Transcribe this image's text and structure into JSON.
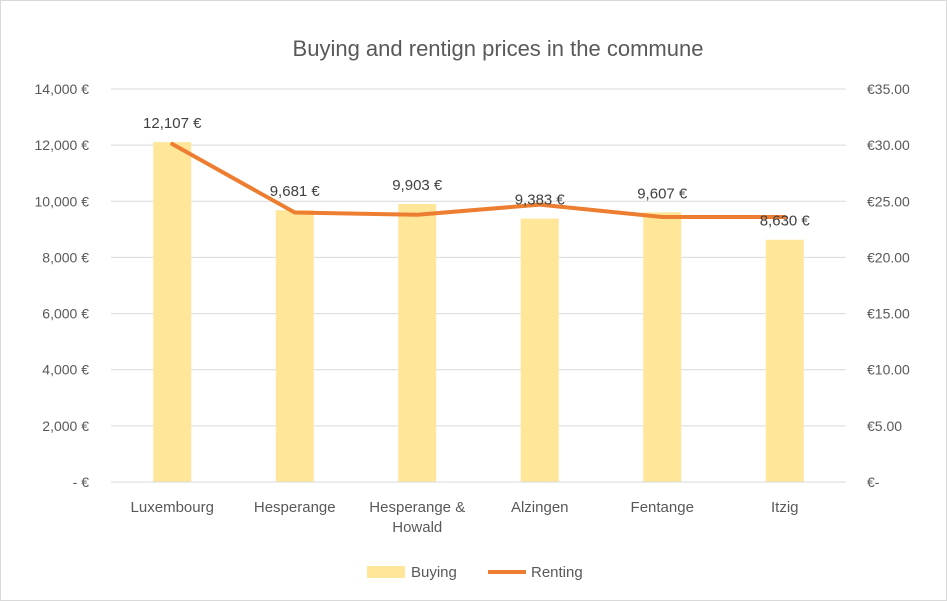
{
  "chart_data": {
    "type": "bar",
    "title": "Buying and rentign prices in the commune",
    "categories": [
      [
        "Luxembourg"
      ],
      [
        "Hesperange"
      ],
      [
        "Hesperange &",
        "Howald"
      ],
      [
        "Alzingen"
      ],
      [
        "Fentange"
      ],
      [
        "Itzig"
      ]
    ],
    "series": [
      {
        "name": "Buying",
        "type": "bar",
        "axis": "left",
        "color": "#FFE699",
        "values": [
          12107,
          9681,
          9903,
          9383,
          9607,
          8630
        ],
        "data_labels": [
          "12,107 €",
          "9,681 €",
          "9,903 €",
          "9,383 €",
          "9,607 €",
          "8,630 €"
        ]
      },
      {
        "name": "Renting",
        "type": "line",
        "axis": "right",
        "color": "#ED7D31",
        "values": [
          30.1,
          24.0,
          23.8,
          24.7,
          23.6,
          23.6
        ]
      }
    ],
    "y_left": {
      "min": 0,
      "max": 14000,
      "ticks": [
        0,
        2000,
        4000,
        6000,
        8000,
        10000,
        12000,
        14000
      ],
      "tick_labels": [
        "-  €",
        "2,000 €",
        "4,000 €",
        "6,000 €",
        "8,000 €",
        "10,000 €",
        "12,000 €",
        "14,000 €"
      ]
    },
    "y_right": {
      "min": 0,
      "max": 35,
      "ticks": [
        0,
        5,
        10,
        15,
        20,
        25,
        30,
        35
      ],
      "tick_labels": [
        "€-",
        "€5.00",
        "€10.00",
        "€15.00",
        "€20.00",
        "€25.00",
        "€30.00",
        "€35.00"
      ]
    },
    "grid": true,
    "legend_position": "bottom"
  }
}
